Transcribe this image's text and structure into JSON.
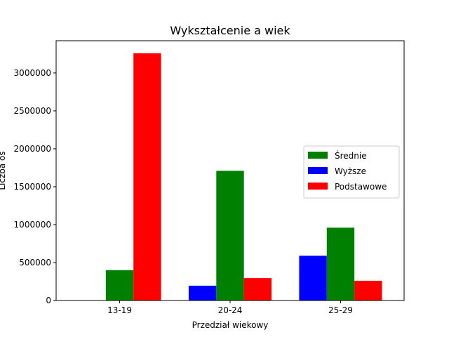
{
  "chart_data": {
    "type": "bar",
    "title": "Wykształcenie a wiek",
    "xlabel": "Przedział wiekowy",
    "ylabel": "Liczba os",
    "categories": [
      "13-19",
      "20-24",
      "25-29"
    ],
    "series": [
      {
        "name": "Wyższe",
        "color": "#0000ff",
        "values": [
          0,
          195000,
          590000
        ]
      },
      {
        "name": "Średnie",
        "color": "#008000",
        "values": [
          400000,
          1710000,
          960000
        ]
      },
      {
        "name": "Podstawowe",
        "color": "#ff0000",
        "values": [
          3260000,
          295000,
          260000
        ]
      }
    ],
    "legend_order": [
      "Średnie",
      "Wyższe",
      "Podstawowe"
    ],
    "ylim": [
      0,
      3425000
    ],
    "yticks": [
      0,
      500000,
      1000000,
      1500000,
      2000000,
      2500000,
      3000000
    ],
    "ytick_labels": [
      "0",
      "500000",
      "1000000",
      "1500000",
      "2000000",
      "2500000",
      "3000000"
    ],
    "legend_position": "center-right",
    "grid": false
  }
}
